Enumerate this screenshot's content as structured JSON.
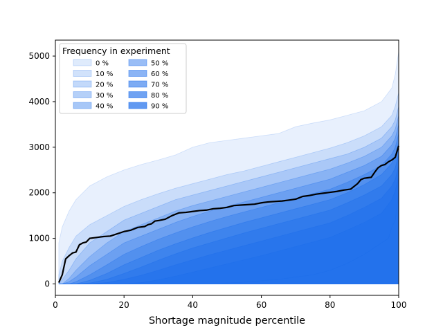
{
  "chart_data": {
    "type": "area",
    "title": "",
    "xlabel": "Shortage magnitude percentile",
    "ylabel": "",
    "xlim": [
      0,
      100
    ],
    "ylim": [
      -250,
      5350
    ],
    "xticks": [
      0,
      20,
      40,
      60,
      80,
      100
    ],
    "yticks": [
      0,
      1000,
      2000,
      3000,
      4000,
      5000
    ],
    "grid": false,
    "legend": {
      "title": "Frequency in experiment",
      "placement": "top-left",
      "columns": 2
    },
    "base_color": "#1f6feb",
    "series": [
      {
        "name": "0 %",
        "x": [
          1,
          2,
          4,
          6,
          10,
          15,
          20,
          25,
          30,
          35,
          40,
          45,
          50,
          55,
          60,
          65,
          70,
          75,
          80,
          85,
          90,
          95,
          98,
          99,
          100
        ],
        "upper": [
          900,
          1250,
          1600,
          1850,
          2150,
          2350,
          2500,
          2620,
          2720,
          2830,
          3000,
          3100,
          3150,
          3200,
          3250,
          3300,
          3450,
          3530,
          3600,
          3700,
          3800,
          4000,
          4300,
          4600,
          5100
        ],
        "lower": [
          0,
          0,
          0,
          0,
          0,
          0,
          0,
          0,
          0,
          0,
          0,
          0,
          0,
          0,
          0,
          0,
          0,
          0,
          0,
          0,
          0,
          0,
          0,
          0,
          0
        ]
      },
      {
        "name": "10 %",
        "x": [
          1,
          2,
          4,
          6,
          10,
          15,
          20,
          25,
          30,
          35,
          40,
          45,
          50,
          55,
          60,
          65,
          70,
          75,
          80,
          85,
          90,
          95,
          98,
          99,
          100
        ],
        "upper": [
          200,
          500,
          800,
          1050,
          1300,
          1500,
          1700,
          1850,
          1980,
          2100,
          2200,
          2300,
          2400,
          2480,
          2580,
          2680,
          2780,
          2880,
          2980,
          3100,
          3250,
          3450,
          3700,
          3900,
          4200
        ],
        "lower": [
          0,
          0,
          0,
          0,
          0,
          0,
          0,
          0,
          0,
          0,
          0,
          0,
          0,
          0,
          0,
          0,
          0,
          0,
          0,
          0,
          0,
          0,
          0,
          0,
          0
        ]
      },
      {
        "name": "20 %",
        "x": [
          1,
          2,
          4,
          6,
          10,
          15,
          20,
          25,
          30,
          35,
          40,
          45,
          50,
          55,
          60,
          65,
          70,
          75,
          80,
          85,
          90,
          95,
          98,
          99,
          100
        ],
        "upper": [
          0,
          100,
          300,
          550,
          900,
          1150,
          1400,
          1550,
          1700,
          1850,
          1950,
          2050,
          2150,
          2250,
          2350,
          2450,
          2550,
          2650,
          2750,
          2850,
          3000,
          3200,
          3450,
          3600,
          3900
        ],
        "lower": [
          0,
          0,
          0,
          0,
          0,
          0,
          0,
          0,
          0,
          0,
          0,
          0,
          0,
          0,
          0,
          0,
          0,
          0,
          0,
          0,
          0,
          0,
          0,
          0,
          0
        ]
      },
      {
        "name": "30 %",
        "x": [
          1,
          2,
          4,
          6,
          10,
          15,
          20,
          25,
          30,
          35,
          40,
          45,
          50,
          55,
          60,
          65,
          70,
          75,
          80,
          85,
          90,
          95,
          98,
          99,
          100
        ],
        "upper": [
          0,
          0,
          120,
          300,
          600,
          900,
          1150,
          1300,
          1450,
          1600,
          1720,
          1820,
          1920,
          2020,
          2120,
          2220,
          2320,
          2420,
          2520,
          2650,
          2800,
          3000,
          3250,
          3400,
          3700
        ],
        "lower": [
          0,
          0,
          0,
          0,
          0,
          0,
          0,
          0,
          0,
          0,
          0,
          0,
          0,
          0,
          0,
          0,
          0,
          0,
          0,
          0,
          0,
          0,
          0,
          0,
          0
        ]
      },
      {
        "name": "40 %",
        "x": [
          1,
          2,
          4,
          6,
          10,
          15,
          20,
          25,
          30,
          35,
          40,
          45,
          50,
          55,
          60,
          65,
          70,
          75,
          80,
          85,
          90,
          95,
          98,
          99,
          100
        ],
        "upper": [
          0,
          0,
          50,
          150,
          400,
          650,
          900,
          1050,
          1200,
          1350,
          1480,
          1600,
          1700,
          1800,
          1900,
          2000,
          2100,
          2200,
          2300,
          2450,
          2600,
          2800,
          3050,
          3200,
          3500
        ],
        "lower": [
          0,
          0,
          0,
          0,
          0,
          0,
          0,
          0,
          0,
          0,
          0,
          0,
          0,
          0,
          0,
          0,
          0,
          0,
          0,
          0,
          0,
          0,
          0,
          0,
          0
        ]
      },
      {
        "name": "50 %",
        "x": [
          1,
          2,
          4,
          6,
          10,
          15,
          20,
          25,
          30,
          35,
          40,
          45,
          50,
          55,
          60,
          65,
          70,
          75,
          80,
          85,
          90,
          95,
          98,
          99,
          100
        ],
        "upper": [
          0,
          0,
          0,
          50,
          200,
          420,
          650,
          820,
          980,
          1120,
          1250,
          1370,
          1480,
          1580,
          1680,
          1780,
          1880,
          1980,
          2080,
          2230,
          2400,
          2600,
          2850,
          3000,
          3300
        ],
        "lower": [
          0,
          0,
          0,
          0,
          0,
          0,
          0,
          0,
          0,
          0,
          0,
          0,
          0,
          0,
          0,
          0,
          0,
          0,
          0,
          0,
          0,
          0,
          0,
          0,
          0
        ]
      },
      {
        "name": "60 %",
        "x": [
          1,
          2,
          4,
          6,
          10,
          15,
          20,
          25,
          30,
          35,
          40,
          45,
          50,
          55,
          60,
          65,
          70,
          75,
          80,
          85,
          90,
          95,
          98,
          99,
          100
        ],
        "upper": [
          0,
          0,
          0,
          0,
          80,
          230,
          420,
          580,
          740,
          880,
          1010,
          1130,
          1240,
          1350,
          1450,
          1550,
          1650,
          1750,
          1850,
          2000,
          2180,
          2400,
          2650,
          2800,
          3100
        ],
        "lower": [
          0,
          0,
          0,
          0,
          0,
          0,
          0,
          0,
          0,
          0,
          0,
          0,
          0,
          0,
          0,
          0,
          0,
          0,
          0,
          0,
          0,
          0,
          0,
          0,
          0
        ]
      },
      {
        "name": "70 %",
        "x": [
          1,
          2,
          4,
          6,
          10,
          15,
          20,
          25,
          30,
          35,
          40,
          45,
          50,
          55,
          60,
          65,
          70,
          75,
          80,
          85,
          90,
          95,
          98,
          99,
          100
        ],
        "upper": [
          0,
          0,
          0,
          0,
          20,
          100,
          230,
          370,
          520,
          660,
          790,
          900,
          1010,
          1120,
          1220,
          1320,
          1420,
          1520,
          1620,
          1780,
          1950,
          2150,
          2400,
          2550,
          2850
        ],
        "lower": [
          0,
          0,
          0,
          0,
          0,
          0,
          0,
          0,
          0,
          0,
          0,
          0,
          0,
          0,
          0,
          0,
          0,
          0,
          0,
          0,
          0,
          0,
          0,
          0,
          0
        ]
      },
      {
        "name": "80 %",
        "x": [
          1,
          2,
          4,
          6,
          10,
          15,
          20,
          25,
          30,
          35,
          40,
          45,
          50,
          55,
          60,
          65,
          70,
          75,
          80,
          85,
          90,
          95,
          98,
          99,
          100
        ],
        "upper": [
          0,
          0,
          0,
          0,
          0,
          30,
          100,
          190,
          300,
          420,
          530,
          640,
          740,
          840,
          940,
          1040,
          1140,
          1240,
          1340,
          1500,
          1680,
          1880,
          2150,
          2300,
          2600
        ],
        "lower": [
          0,
          0,
          0,
          0,
          0,
          0,
          0,
          0,
          0,
          0,
          0,
          0,
          0,
          0,
          0,
          0,
          0,
          0,
          0,
          0,
          0,
          0,
          0,
          0,
          0
        ]
      },
      {
        "name": "90 %",
        "x": [
          1,
          2,
          4,
          6,
          10,
          15,
          20,
          25,
          30,
          35,
          40,
          45,
          50,
          55,
          60,
          65,
          70,
          75,
          80,
          85,
          90,
          95,
          98,
          99,
          100
        ],
        "upper": [
          0,
          0,
          0,
          0,
          0,
          0,
          0,
          30,
          90,
          170,
          260,
          350,
          440,
          530,
          620,
          720,
          820,
          920,
          1020,
          1180,
          1350,
          1550,
          1850,
          2050,
          2350
        ],
        "lower": [
          0,
          0,
          0,
          0,
          0,
          0,
          0,
          0,
          0,
          0,
          0,
          0,
          0,
          0,
          0,
          0,
          0,
          0,
          0,
          0,
          0,
          0,
          0,
          0,
          0
        ]
      }
    ],
    "inner_band": {
      "x": [
        1,
        5,
        10,
        15,
        20,
        25,
        30,
        35,
        40,
        45,
        47,
        50,
        55,
        60,
        65,
        70,
        75,
        80,
        85,
        90,
        95,
        97,
        98,
        99,
        100
      ],
      "upper": [
        0,
        0,
        0,
        0,
        0,
        0,
        0,
        0,
        0,
        0,
        0,
        0,
        0,
        0,
        0,
        0,
        0,
        0,
        0,
        0,
        0,
        0,
        0,
        0,
        0
      ],
      "lower_line": [
        0,
        0,
        0,
        0,
        0,
        0,
        0,
        0,
        0,
        0,
        0,
        20,
        40,
        70,
        100,
        150,
        200,
        300,
        450,
        650,
        900,
        1000,
        1250,
        1400,
        2000
      ]
    },
    "median_line": {
      "x": [
        1,
        2,
        3,
        4,
        5,
        6,
        7,
        8,
        9,
        10,
        12,
        14,
        16,
        18,
        20,
        22,
        24,
        26,
        27,
        28,
        29,
        30,
        32,
        34,
        36,
        38,
        40,
        42,
        44,
        46,
        48,
        50,
        52,
        54,
        56,
        58,
        60,
        62,
        64,
        66,
        68,
        70,
        72,
        74,
        76,
        78,
        80,
        82,
        84,
        86,
        88,
        89,
        90,
        91,
        92,
        93,
        94,
        95,
        96,
        97,
        98,
        99,
        100
      ],
      "y": [
        30,
        200,
        550,
        620,
        680,
        700,
        860,
        900,
        920,
        1000,
        1020,
        1040,
        1050,
        1100,
        1150,
        1180,
        1240,
        1260,
        1300,
        1320,
        1380,
        1390,
        1420,
        1500,
        1560,
        1570,
        1590,
        1610,
        1620,
        1650,
        1660,
        1680,
        1720,
        1730,
        1740,
        1750,
        1780,
        1800,
        1810,
        1820,
        1840,
        1860,
        1920,
        1940,
        1970,
        1990,
        2010,
        2030,
        2060,
        2080,
        2200,
        2290,
        2320,
        2330,
        2340,
        2450,
        2550,
        2600,
        2620,
        2680,
        2720,
        2780,
        3030
      ]
    }
  }
}
